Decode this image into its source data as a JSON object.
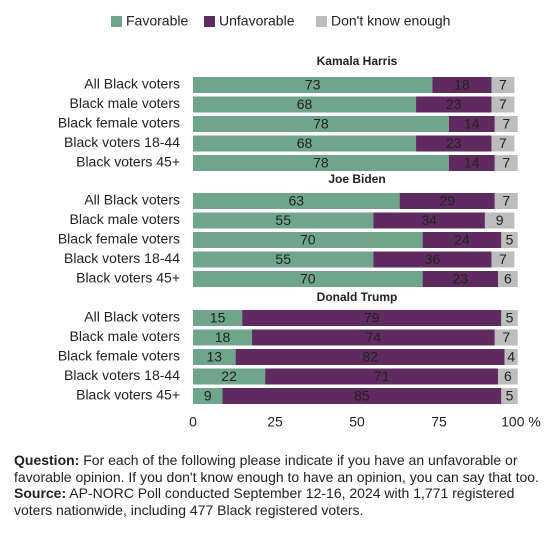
{
  "chart_data": {
    "type": "bar",
    "orientation": "horizontal",
    "stacked": true,
    "series": [
      {
        "name": "Favorable",
        "color": "#6fa68b"
      },
      {
        "name": "Unfavorable",
        "color": "#5e2a5f"
      },
      {
        "name": "Don't know enough",
        "color": "#bdbdbd"
      }
    ],
    "panels": [
      {
        "title": "Kamala Harris",
        "categories": [
          "All Black voters",
          "Black male voters",
          "Black female voters",
          "Black voters 18-44",
          "Black voters 45+"
        ],
        "series": [
          {
            "values": [
              73,
              68,
              78,
              68,
              78
            ]
          },
          {
            "values": [
              18,
              23,
              14,
              23,
              14
            ]
          },
          {
            "values": [
              7,
              7,
              7,
              7,
              7
            ]
          }
        ]
      },
      {
        "title": "Joe Biden",
        "categories": [
          "All Black voters",
          "Black male voters",
          "Black female voters",
          "Black voters 18-44",
          "Black voters 45+"
        ],
        "series": [
          {
            "values": [
              63,
              55,
              70,
              55,
              70
            ]
          },
          {
            "values": [
              29,
              34,
              24,
              36,
              23
            ]
          },
          {
            "values": [
              7,
              9,
              5,
              7,
              6
            ]
          }
        ]
      },
      {
        "title": "Donald Trump",
        "categories": [
          "All Black voters",
          "Black male voters",
          "Black female voters",
          "Black voters 18-44",
          "Black voters 45+"
        ],
        "series": [
          {
            "values": [
              15,
              18,
              13,
              22,
              9
            ]
          },
          {
            "values": [
              79,
              74,
              82,
              71,
              85
            ]
          },
          {
            "values": [
              5,
              7,
              4,
              6,
              5
            ]
          }
        ]
      }
    ],
    "xlim": [
      0,
      100
    ],
    "xticks": [
      0,
      25,
      50,
      75,
      {
        "value": 100,
        "label": "100 %"
      }
    ]
  },
  "notes": {
    "question_label": "Question:",
    "question": "For each of the following please indicate if you have an unfavorable or favorable opinion. If you don't know enough to have an opinion, you can say that too.",
    "source_label": "Source:",
    "source": "AP-NORC Poll conducted September 12-16, 2024 with 1,771 registered voters nationwide, including 477 Black registered voters."
  }
}
